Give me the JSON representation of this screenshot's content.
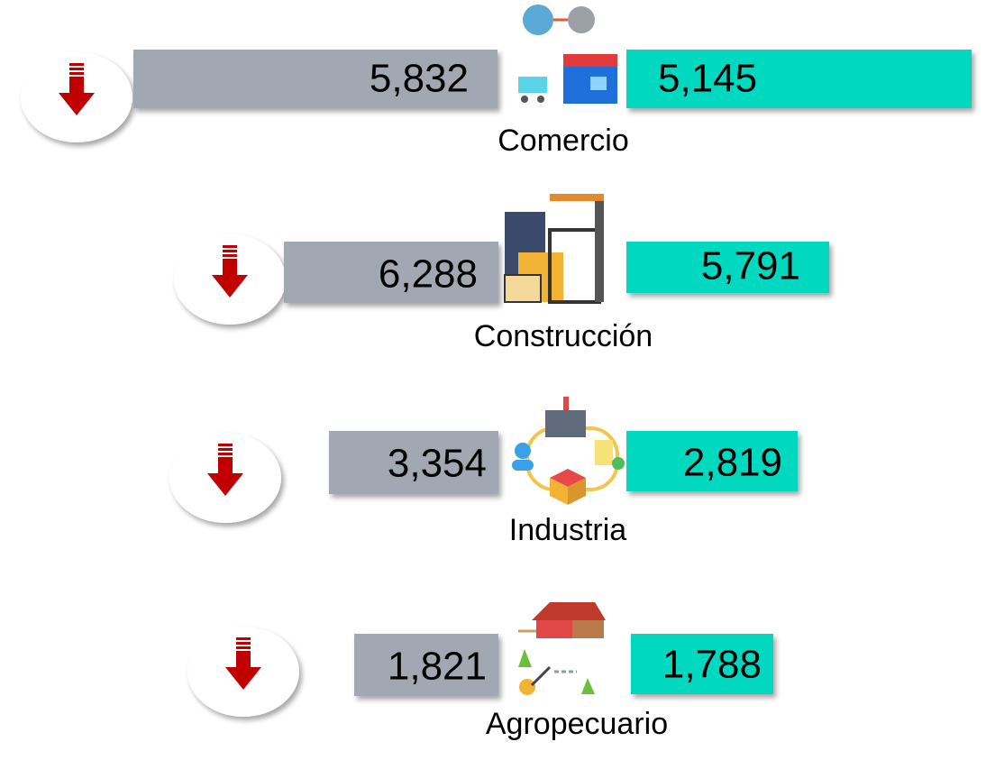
{
  "rows": [
    {
      "label": "Comercio",
      "before": "5,832",
      "after": "5,145"
    },
    {
      "label": "Construcción",
      "before": "6,288",
      "after": "5,791"
    },
    {
      "label": "Industria",
      "before": "3,354",
      "after": "2,819"
    },
    {
      "label": "Agropecuario",
      "before": "1,821",
      "after": "1,788"
    }
  ]
}
